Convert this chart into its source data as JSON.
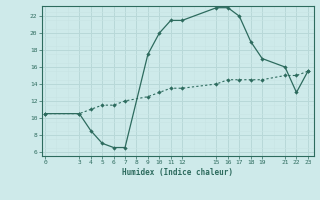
{
  "xlabel": "Humidex (Indice chaleur)",
  "line1_x": [
    0,
    3,
    4,
    5,
    6,
    7,
    9,
    10,
    11,
    12,
    15,
    16,
    17,
    18,
    19,
    21,
    22,
    23
  ],
  "line1_y": [
    10.5,
    10.5,
    8.5,
    7,
    6.5,
    6.5,
    17.5,
    20,
    21.5,
    21.5,
    23,
    23,
    22,
    19,
    17,
    16,
    13,
    15.5
  ],
  "line2_x": [
    0,
    3,
    4,
    5,
    6,
    7,
    9,
    10,
    11,
    12,
    15,
    16,
    17,
    18,
    19,
    21,
    22,
    23
  ],
  "line2_y": [
    10.5,
    10.5,
    11,
    11.5,
    11.5,
    12,
    12.5,
    13,
    13.5,
    13.5,
    14,
    14.5,
    14.5,
    14.5,
    14.5,
    15,
    15,
    15.5
  ],
  "line_color": "#2d6b5e",
  "bg_color": "#ceeaea",
  "grid_major_color": "#b8d8d8",
  "grid_minor_color": "#c8e4e4",
  "xticks": [
    0,
    3,
    4,
    5,
    6,
    7,
    8,
    9,
    10,
    11,
    12,
    15,
    16,
    17,
    18,
    19,
    21,
    22,
    23
  ],
  "yticks": [
    6,
    8,
    10,
    12,
    14,
    16,
    18,
    20,
    22
  ],
  "xlim": [
    -0.3,
    23.5
  ],
  "ylim": [
    5.5,
    23.2
  ]
}
